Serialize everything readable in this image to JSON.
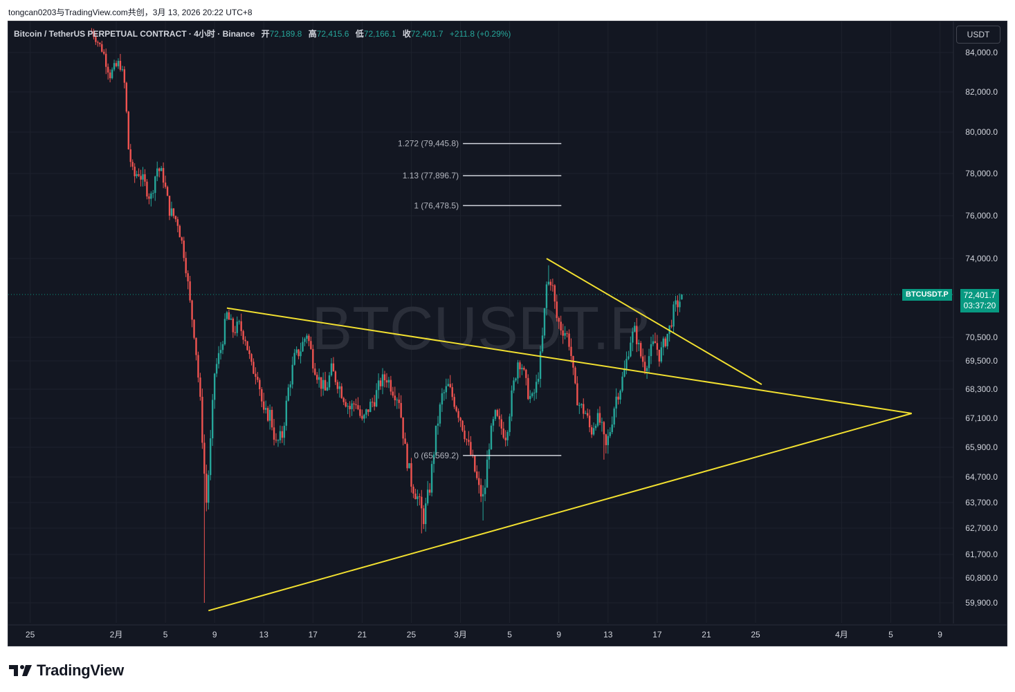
{
  "caption": "tongcan0203与TradingView.com共创，3月 13, 2026 20:22 UTC+8",
  "legend": {
    "title": "Bitcoin / TetherUS PERPETUAL CONTRACT · 4小时 · Binance",
    "open_label": "开",
    "open": "72,189.8",
    "high_label": "高",
    "high": "72,415.6",
    "low_label": "低",
    "low": "72,166.1",
    "close_label": "收",
    "close": "72,401.7",
    "change": "+211.8 (+0.29%)"
  },
  "unit_button": "USDT",
  "watermark": "BTCUSDT.P",
  "last_price": {
    "symbol": "BTCUSDT.P",
    "price": "72,401.7",
    "countdown": "03:37:20"
  },
  "brand": "TradingView",
  "colors": {
    "background": "#131722",
    "up": "#26a69a",
    "down": "#ef5350",
    "trendline": "#f2e030",
    "fib": "#d1d4dc"
  },
  "chart_data": {
    "type": "candlestick",
    "timeframe": "4h",
    "y_ticks": [
      84000,
      82000,
      80000,
      78000,
      76000,
      74000,
      70500,
      69500,
      68300,
      67100,
      65900,
      64700,
      63700,
      62700,
      61700,
      60800,
      59900
    ],
    "y_tick_labels": [
      "84,000.0",
      "82,000.0",
      "80,000.0",
      "78,000.0",
      "76,000.0",
      "74,000.0",
      "70,500.0",
      "69,500.0",
      "68,300.0",
      "67,100.0",
      "65,900.0",
      "64,700.0",
      "63,700.0",
      "62,700.0",
      "61,700.0",
      "60,800.0",
      "59,900.0"
    ],
    "x_tick_labels": [
      "25",
      "2月",
      "5",
      "9",
      "13",
      "17",
      "21",
      "25",
      "3月",
      "5",
      "9",
      "13",
      "17",
      "21",
      "25",
      "4月",
      "5",
      "9"
    ],
    "x_tick_days": [
      -7,
      0,
      4,
      8,
      12,
      16,
      20,
      24,
      28,
      32,
      36,
      40,
      44,
      48,
      52,
      59,
      63,
      67
    ],
    "price_path": [
      [
        -2.0,
        85600
      ],
      [
        -1.2,
        84300
      ],
      [
        -0.5,
        82900
      ],
      [
        0.3,
        83500
      ],
      [
        0.7,
        82300
      ],
      [
        1.0,
        79200
      ],
      [
        1.4,
        77800
      ],
      [
        1.8,
        78100
      ],
      [
        2.3,
        77500
      ],
      [
        2.8,
        76800
      ],
      [
        3.3,
        78300
      ],
      [
        3.8,
        77900
      ],
      [
        4.3,
        76300
      ],
      [
        5.0,
        75700
      ],
      [
        5.6,
        74000
      ],
      [
        6.0,
        72000
      ],
      [
        6.4,
        70500
      ],
      [
        6.8,
        68000
      ],
      [
        7.1,
        65500
      ],
      [
        7.3,
        63500
      ],
      [
        7.6,
        65500
      ],
      [
        8.0,
        69000
      ],
      [
        8.5,
        70000
      ],
      [
        9.0,
        71500
      ],
      [
        9.5,
        70800
      ],
      [
        10.0,
        71000
      ],
      [
        10.5,
        70500
      ],
      [
        11.0,
        69200
      ],
      [
        11.5,
        69000
      ],
      [
        12.0,
        67200
      ],
      [
        12.5,
        67300
      ],
      [
        13.0,
        66000
      ],
      [
        13.5,
        66400
      ],
      [
        14.0,
        68300
      ],
      [
        14.5,
        69600
      ],
      [
        15.0,
        70000
      ],
      [
        15.5,
        70700
      ],
      [
        16.0,
        69500
      ],
      [
        16.5,
        68700
      ],
      [
        17.0,
        68200
      ],
      [
        17.5,
        69100
      ],
      [
        18.0,
        68600
      ],
      [
        18.5,
        68000
      ],
      [
        19.0,
        67500
      ],
      [
        19.5,
        67800
      ],
      [
        20.0,
        66900
      ],
      [
        20.5,
        67500
      ],
      [
        21.0,
        67900
      ],
      [
        21.5,
        68600
      ],
      [
        22.0,
        68800
      ],
      [
        22.5,
        68300
      ],
      [
        23.0,
        67900
      ],
      [
        23.5,
        65800
      ],
      [
        24.0,
        64500
      ],
      [
        24.5,
        63900
      ],
      [
        25.0,
        63100
      ],
      [
        25.5,
        64300
      ],
      [
        26.0,
        66500
      ],
      [
        26.5,
        68000
      ],
      [
        27.0,
        68400
      ],
      [
        27.5,
        67800
      ],
      [
        28.0,
        67100
      ],
      [
        28.5,
        66200
      ],
      [
        29.0,
        65300
      ],
      [
        29.5,
        64200
      ],
      [
        29.9,
        63800
      ],
      [
        30.3,
        66000
      ],
      [
        30.8,
        67200
      ],
      [
        31.2,
        66800
      ],
      [
        31.7,
        66400
      ],
      [
        32.2,
        68100
      ],
      [
        32.7,
        69600
      ],
      [
        33.0,
        69300
      ],
      [
        33.4,
        68300
      ],
      [
        33.8,
        67800
      ],
      [
        34.2,
        68500
      ],
      [
        34.6,
        70000
      ],
      [
        35.0,
        72800
      ],
      [
        35.4,
        73100
      ],
      [
        35.8,
        71400
      ],
      [
        36.2,
        70900
      ],
      [
        36.6,
        70700
      ],
      [
        36.9,
        70200
      ],
      [
        37.3,
        68300
      ],
      [
        37.7,
        67600
      ],
      [
        38.2,
        67300
      ],
      [
        38.6,
        66500
      ],
      [
        39.0,
        67100
      ],
      [
        39.4,
        66900
      ],
      [
        39.8,
        65800
      ],
      [
        40.2,
        66700
      ],
      [
        40.6,
        67900
      ],
      [
        41.0,
        68400
      ],
      [
        41.4,
        69200
      ],
      [
        41.8,
        70400
      ],
      [
        42.2,
        70800
      ],
      [
        42.6,
        69800
      ],
      [
        43.0,
        69300
      ],
      [
        43.4,
        69800
      ],
      [
        43.8,
        70300
      ],
      [
        44.2,
        69700
      ],
      [
        44.6,
        70300
      ],
      [
        45.0,
        70900
      ],
      [
        45.4,
        71800
      ],
      [
        45.8,
        72100
      ],
      [
        46.1,
        72400
      ]
    ],
    "trendlines": [
      {
        "name": "upper",
        "from": [
          9.0,
          71800
        ],
        "to": [
          64.7,
          67300
        ]
      },
      {
        "name": "lower",
        "from": [
          7.5,
          59600
        ],
        "to": [
          64.7,
          67300
        ]
      },
      {
        "name": "descending",
        "from": [
          35.0,
          74000
        ],
        "to": [
          52.5,
          68500
        ]
      }
    ],
    "fib_levels": [
      {
        "label": "1.272 (79,445.8)",
        "price": 79445.8
      },
      {
        "label": "1.13 (77,896.7)",
        "price": 77896.7
      },
      {
        "label": "1 (76,478.5)",
        "price": 76478.5
      },
      {
        "label": "0 (65,569.2)",
        "price": 65569.2
      }
    ],
    "last": 72401.7
  }
}
